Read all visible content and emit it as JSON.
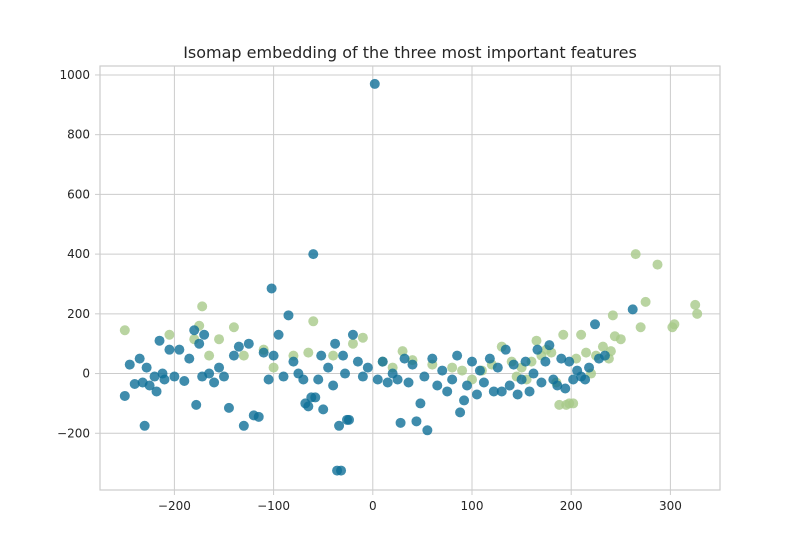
{
  "chart_data": {
    "type": "scatter",
    "title": "Isomap embedding of the three most important features",
    "xlabel": "",
    "ylabel": "",
    "xlim": [
      -275,
      350
    ],
    "ylim": [
      -390,
      1030
    ],
    "xticks": [
      -200,
      -100,
      0,
      100,
      200,
      300
    ],
    "yticks": [
      -200,
      0,
      200,
      400,
      600,
      800,
      1000
    ],
    "xtick_labels": [
      "−200",
      "−100",
      "0",
      "100",
      "200",
      "300"
    ],
    "ytick_labels": [
      "−200",
      "0",
      "200",
      "400",
      "600",
      "800",
      "1000"
    ],
    "grid": true,
    "legend": "none",
    "colors": {
      "class_a": "#a8c98a",
      "class_b": "#0f6f97"
    },
    "series": [
      {
        "color": "#a8c98a",
        "points": [
          [
            -250,
            145
          ],
          [
            -205,
            130
          ],
          [
            -180,
            115
          ],
          [
            -175,
            160
          ],
          [
            -172,
            225
          ],
          [
            -165,
            60
          ],
          [
            -155,
            115
          ],
          [
            -140,
            155
          ],
          [
            -130,
            60
          ],
          [
            -110,
            80
          ],
          [
            -100,
            20
          ],
          [
            -80,
            60
          ],
          [
            -65,
            70
          ],
          [
            -60,
            175
          ],
          [
            -40,
            60
          ],
          [
            -20,
            100
          ],
          [
            -10,
            120
          ],
          [
            10,
            40
          ],
          [
            20,
            20
          ],
          [
            30,
            75
          ],
          [
            40,
            45
          ],
          [
            60,
            30
          ],
          [
            80,
            20
          ],
          [
            90,
            10
          ],
          [
            100,
            -20
          ],
          [
            110,
            10
          ],
          [
            120,
            30
          ],
          [
            130,
            90
          ],
          [
            140,
            40
          ],
          [
            145,
            -10
          ],
          [
            150,
            20
          ],
          [
            155,
            -20
          ],
          [
            160,
            40
          ],
          [
            165,
            110
          ],
          [
            170,
            60
          ],
          [
            175,
            80
          ],
          [
            180,
            70
          ],
          [
            185,
            -30
          ],
          [
            188,
            -105
          ],
          [
            192,
            130
          ],
          [
            195,
            -105
          ],
          [
            198,
            -100
          ],
          [
            202,
            -100
          ],
          [
            205,
            50
          ],
          [
            210,
            130
          ],
          [
            215,
            70
          ],
          [
            220,
            0
          ],
          [
            225,
            60
          ],
          [
            232,
            90
          ],
          [
            238,
            50
          ],
          [
            240,
            75
          ],
          [
            242,
            195
          ],
          [
            244,
            125
          ],
          [
            250,
            115
          ],
          [
            265,
            400
          ],
          [
            270,
            155
          ],
          [
            275,
            240
          ],
          [
            287,
            365
          ],
          [
            302,
            155
          ],
          [
            304,
            165
          ],
          [
            325,
            230
          ],
          [
            327,
            200
          ]
        ]
      },
      {
        "color": "#0f6f97",
        "points": [
          [
            -250,
            -75
          ],
          [
            -245,
            30
          ],
          [
            -240,
            -35
          ],
          [
            -235,
            50
          ],
          [
            -232,
            -30
          ],
          [
            -230,
            -175
          ],
          [
            -228,
            20
          ],
          [
            -225,
            -40
          ],
          [
            -220,
            -10
          ],
          [
            -218,
            -60
          ],
          [
            -215,
            110
          ],
          [
            -212,
            0
          ],
          [
            -210,
            -20
          ],
          [
            -205,
            80
          ],
          [
            -200,
            -10
          ],
          [
            -195,
            80
          ],
          [
            -190,
            -25
          ],
          [
            -185,
            50
          ],
          [
            -180,
            145
          ],
          [
            -178,
            -105
          ],
          [
            -175,
            100
          ],
          [
            -172,
            -10
          ],
          [
            -170,
            130
          ],
          [
            -165,
            0
          ],
          [
            -160,
            -30
          ],
          [
            -155,
            20
          ],
          [
            -150,
            -10
          ],
          [
            -145,
            -115
          ],
          [
            -140,
            60
          ],
          [
            -135,
            90
          ],
          [
            -130,
            -175
          ],
          [
            -125,
            100
          ],
          [
            -120,
            -140
          ],
          [
            -115,
            -145
          ],
          [
            -110,
            70
          ],
          [
            -105,
            -20
          ],
          [
            -102,
            285
          ],
          [
            -100,
            60
          ],
          [
            -95,
            130
          ],
          [
            -90,
            -10
          ],
          [
            -85,
            195
          ],
          [
            -80,
            40
          ],
          [
            -75,
            0
          ],
          [
            -70,
            -20
          ],
          [
            -68,
            -100
          ],
          [
            -65,
            -110
          ],
          [
            -62,
            -80
          ],
          [
            -60,
            400
          ],
          [
            -58,
            -80
          ],
          [
            -55,
            -20
          ],
          [
            -52,
            60
          ],
          [
            -50,
            -120
          ],
          [
            -45,
            20
          ],
          [
            -40,
            -40
          ],
          [
            -38,
            100
          ],
          [
            -36,
            -325
          ],
          [
            -34,
            -175
          ],
          [
            -32,
            -325
          ],
          [
            -30,
            60
          ],
          [
            -28,
            0
          ],
          [
            -26,
            -155
          ],
          [
            -24,
            -155
          ],
          [
            -20,
            130
          ],
          [
            -15,
            40
          ],
          [
            -10,
            -10
          ],
          [
            -5,
            20
          ],
          [
            2,
            970
          ],
          [
            5,
            -20
          ],
          [
            10,
            40
          ],
          [
            15,
            -30
          ],
          [
            20,
            0
          ],
          [
            25,
            -20
          ],
          [
            28,
            -165
          ],
          [
            32,
            50
          ],
          [
            36,
            -30
          ],
          [
            40,
            30
          ],
          [
            44,
            -160
          ],
          [
            48,
            -100
          ],
          [
            52,
            -10
          ],
          [
            55,
            -190
          ],
          [
            60,
            50
          ],
          [
            65,
            -40
          ],
          [
            70,
            10
          ],
          [
            75,
            -60
          ],
          [
            80,
            -20
          ],
          [
            85,
            60
          ],
          [
            88,
            -130
          ],
          [
            92,
            -90
          ],
          [
            95,
            -40
          ],
          [
            100,
            40
          ],
          [
            105,
            -70
          ],
          [
            108,
            10
          ],
          [
            112,
            -30
          ],
          [
            118,
            50
          ],
          [
            122,
            -60
          ],
          [
            126,
            20
          ],
          [
            130,
            -60
          ],
          [
            134,
            80
          ],
          [
            138,
            -40
          ],
          [
            142,
            30
          ],
          [
            146,
            -70
          ],
          [
            150,
            -20
          ],
          [
            154,
            40
          ],
          [
            158,
            -60
          ],
          [
            162,
            0
          ],
          [
            166,
            80
          ],
          [
            170,
            -30
          ],
          [
            174,
            40
          ],
          [
            178,
            95
          ],
          [
            182,
            -20
          ],
          [
            186,
            -40
          ],
          [
            190,
            50
          ],
          [
            194,
            -50
          ],
          [
            198,
            40
          ],
          [
            202,
            -20
          ],
          [
            206,
            10
          ],
          [
            210,
            -10
          ],
          [
            214,
            -20
          ],
          [
            218,
            20
          ],
          [
            224,
            165
          ],
          [
            228,
            50
          ],
          [
            234,
            60
          ],
          [
            262,
            215
          ]
        ]
      }
    ]
  }
}
